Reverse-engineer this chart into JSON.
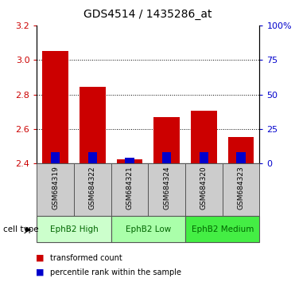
{
  "title": "GDS4514 / 1435286_at",
  "samples": [
    "GSM684319",
    "GSM684322",
    "GSM684321",
    "GSM684324",
    "GSM684320",
    "GSM684323"
  ],
  "cell_type_groups": [
    {
      "label": "EphB2 High",
      "start": 0,
      "end": 2,
      "color": "#ccffcc"
    },
    {
      "label": "EphB2 Low",
      "start": 2,
      "end": 4,
      "color": "#99ff99"
    },
    {
      "label": "EphB2 Medium",
      "start": 4,
      "end": 6,
      "color": "#44ee44"
    }
  ],
  "transformed_count": [
    3.05,
    2.845,
    2.425,
    2.667,
    2.705,
    2.555
  ],
  "percentile_rank_pct": [
    8,
    8,
    4,
    8,
    8,
    8
  ],
  "base_value": 2.4,
  "ylim": [
    2.4,
    3.2
  ],
  "yticks": [
    2.4,
    2.6,
    2.8,
    3.0,
    3.2
  ],
  "right_yticks": [
    0,
    25,
    50,
    75,
    100
  ],
  "bar_color_red": "#cc0000",
  "bar_color_blue": "#0000cc",
  "title_fontsize": 10,
  "tick_color_red": "#cc0000",
  "tick_color_blue": "#0000cc",
  "sample_bg_color": "#cccccc",
  "legend_red_label": "transformed count",
  "legend_blue_label": "percentile rank within the sample",
  "group_text_color": "#006600"
}
